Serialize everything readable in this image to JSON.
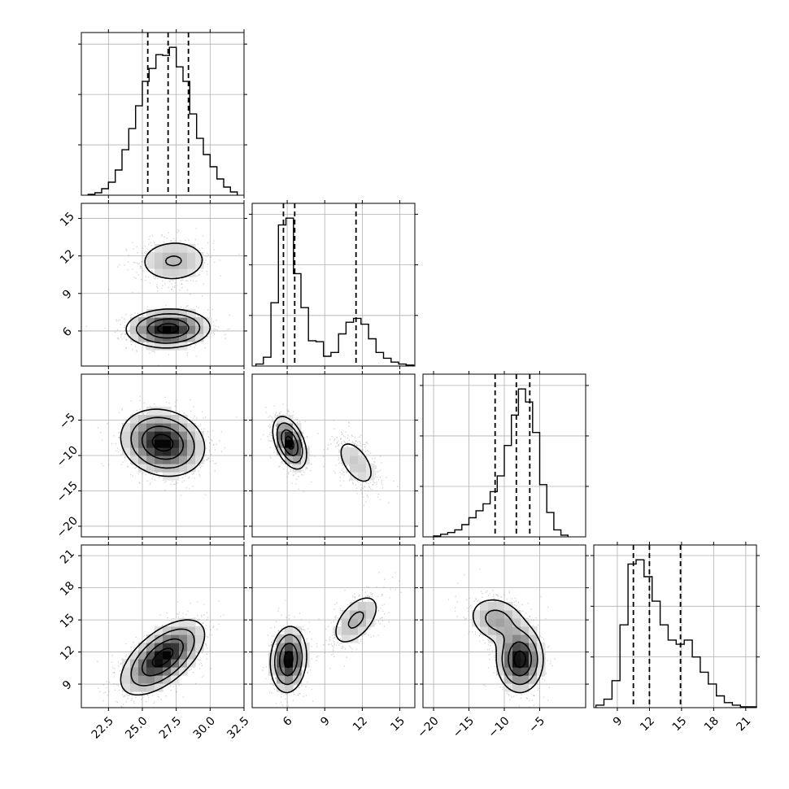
{
  "chart_data": {
    "type": "corner",
    "grid": true,
    "parameters": [
      {
        "index": 0,
        "range": [
          20.5,
          32.5
        ],
        "ticks": [
          22.5,
          25.0,
          27.5,
          30.0,
          32.5
        ],
        "tick_labels": [
          "22.5",
          "25.0",
          "27.5",
          "30.0",
          "32.5"
        ]
      },
      {
        "index": 1,
        "range": [
          3.2,
          16.2
        ],
        "ticks": [
          6,
          9,
          12,
          15
        ],
        "tick_labels": [
          "6",
          "9",
          "12",
          "15"
        ]
      },
      {
        "index": 2,
        "range": [
          -21.5,
          1.5
        ],
        "ticks": [
          -20,
          -15,
          -10,
          -5
        ],
        "tick_labels": [
          "−20",
          "−15",
          "−10",
          "−5"
        ]
      },
      {
        "index": 3,
        "range": [
          6.8,
          22.0
        ],
        "ticks": [
          9,
          12,
          15,
          18,
          21
        ],
        "tick_labels": [
          "9",
          "12",
          "15",
          "18",
          "21"
        ]
      }
    ],
    "marginals": [
      {
        "param": 0,
        "bins": [
          21.0,
          21.5,
          22.0,
          22.5,
          23.0,
          23.5,
          24.0,
          24.5,
          25.0,
          25.5,
          26.0,
          26.5,
          27.0,
          27.5,
          28.0,
          28.5,
          29.0,
          29.5,
          30.0,
          30.5,
          31.0,
          31.5,
          32.0
        ],
        "counts": [
          1,
          3,
          8,
          16,
          31,
          56,
          82,
          110,
          140,
          156,
          173,
          172,
          182,
          158,
          140,
          100,
          70,
          50,
          35,
          20,
          10,
          4
        ],
        "quantiles": [
          25.4,
          26.9,
          28.4
        ]
      },
      {
        "param": 1,
        "bins": [
          3.5,
          4.1,
          4.7,
          5.3,
          5.9,
          6.5,
          7.1,
          7.7,
          8.3,
          8.9,
          9.5,
          10.1,
          10.7,
          11.3,
          11.9,
          12.5,
          13.1,
          13.7,
          14.3,
          14.9,
          15.5,
          16.1
        ],
        "counts": [
          2,
          9,
          65,
          145,
          152,
          95,
          60,
          26,
          25,
          10,
          14,
          33,
          45,
          49,
          43,
          28,
          14,
          8,
          4,
          2,
          1
        ],
        "quantiles": [
          5.7,
          6.6,
          11.5
        ]
      },
      {
        "param": 2,
        "bins": [
          -20,
          -19,
          -18,
          -17,
          -16,
          -15,
          -14,
          -13,
          -12,
          -11,
          -10,
          -9,
          -8,
          -7,
          -6,
          -5,
          -4,
          -3,
          -2,
          -1
        ],
        "counts": [
          1,
          3,
          5,
          8,
          14,
          22,
          30,
          38,
          52,
          70,
          105,
          140,
          170,
          155,
          120,
          60,
          28,
          8,
          2
        ],
        "quantiles": [
          -11.3,
          -8.3,
          -6.4
        ]
      },
      {
        "param": 3,
        "bins": [
          7.0,
          7.75,
          8.5,
          9.25,
          10.0,
          10.75,
          11.5,
          12.25,
          13.0,
          13.75,
          14.5,
          15.25,
          16.0,
          16.75,
          17.5,
          18.25,
          19.0,
          19.75,
          20.5,
          21.25,
          22.0
        ],
        "counts": [
          3,
          10,
          32,
          98,
          170,
          175,
          155,
          126,
          98,
          80,
          75,
          80,
          60,
          42,
          28,
          14,
          6,
          3,
          1,
          1
        ],
        "quantiles": [
          10.5,
          12.0,
          14.9
        ]
      }
    ],
    "quantile_levels": [
      0.16,
      0.5,
      0.84
    ],
    "joint_clusters": {
      "1,0": [
        {
          "mx": 26.9,
          "my": 6.2,
          "sx": 1.5,
          "sy": 0.75,
          "rho": 0.05,
          "w": 0.7
        },
        {
          "mx": 27.3,
          "my": 11.6,
          "sx": 1.5,
          "sy": 1.0,
          "rho": 0.05,
          "w": 0.3
        }
      ],
      "2,0": [
        {
          "mx": 26.5,
          "my": -8.2,
          "sx": 1.5,
          "sy": 2.3,
          "rho": -0.15,
          "w": 1.0
        }
      ],
      "2,1": [
        {
          "mx": 6.2,
          "my": -8.2,
          "sx": 0.65,
          "sy": 1.8,
          "rho": -0.45,
          "w": 0.7
        },
        {
          "mx": 11.5,
          "my": -11.0,
          "sx": 1.0,
          "sy": 2.2,
          "rho": -0.55,
          "w": 0.3
        }
      ],
      "3,0": [
        {
          "mx": 26.5,
          "my": 11.5,
          "sx": 1.5,
          "sy": 1.7,
          "rho": 0.6,
          "w": 1.0
        }
      ],
      "3,1": [
        {
          "mx": 6.1,
          "my": 11.3,
          "sx": 0.7,
          "sy": 1.5,
          "rho": 0.1,
          "w": 0.7
        },
        {
          "mx": 11.5,
          "my": 15.0,
          "sx": 1.1,
          "sy": 1.4,
          "rho": 0.55,
          "w": 0.3
        }
      ],
      "3,2": [
        {
          "mx": -7.8,
          "my": 11.3,
          "sx": 1.6,
          "sy": 1.5,
          "rho": 0.0,
          "w": 0.7
        },
        {
          "mx": -11.0,
          "my": 15.0,
          "sx": 2.2,
          "sy": 1.2,
          "rho": -0.2,
          "w": 0.3
        }
      ]
    }
  }
}
